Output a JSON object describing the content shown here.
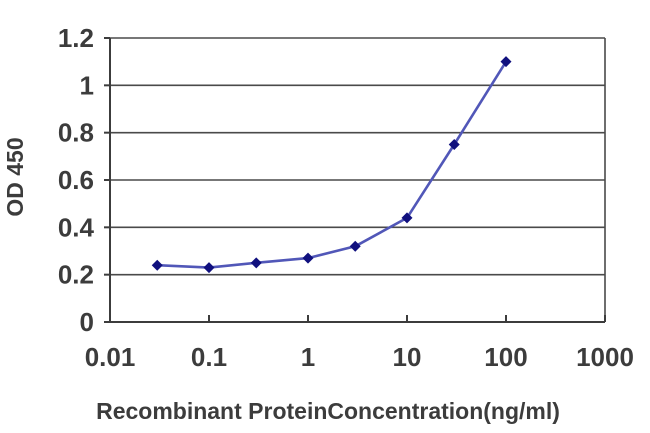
{
  "page": {
    "background": "#ffffff",
    "description": "ELISA standard curve line chart"
  },
  "chart_data": {
    "type": "line",
    "x_scale": "log",
    "x": [
      0.03,
      0.1,
      0.3,
      1,
      3,
      10,
      30,
      100
    ],
    "values": [
      0.24,
      0.23,
      0.25,
      0.27,
      0.32,
      0.44,
      0.75,
      1.1
    ],
    "title": "",
    "xlabel": "Recombinant ProteinConcentration(ng/ml)",
    "ylabel": "OD 450",
    "xlim": [
      0.01,
      1000
    ],
    "ylim": [
      0,
      1.2
    ],
    "x_ticks": [
      0.01,
      0.1,
      1,
      10,
      100,
      1000
    ],
    "x_tick_labels": [
      "0.01",
      "0.1",
      "1",
      "10",
      "100",
      "1000"
    ],
    "y_ticks": [
      0,
      0.2,
      0.4,
      0.6,
      0.8,
      1,
      1.2
    ],
    "y_tick_labels": [
      "0",
      "0.2",
      "0.4",
      "0.6",
      "0.8",
      "1",
      "1.2"
    ],
    "grid": "horizontal",
    "legend": "none",
    "marker": "diamond",
    "colors": {
      "line": "#5157b8",
      "marker": "#10107e",
      "grid": "#4a4a4a",
      "axis": "#3c3c3c",
      "text": "#3c3c3c",
      "plot_background": "#ffffff"
    }
  }
}
